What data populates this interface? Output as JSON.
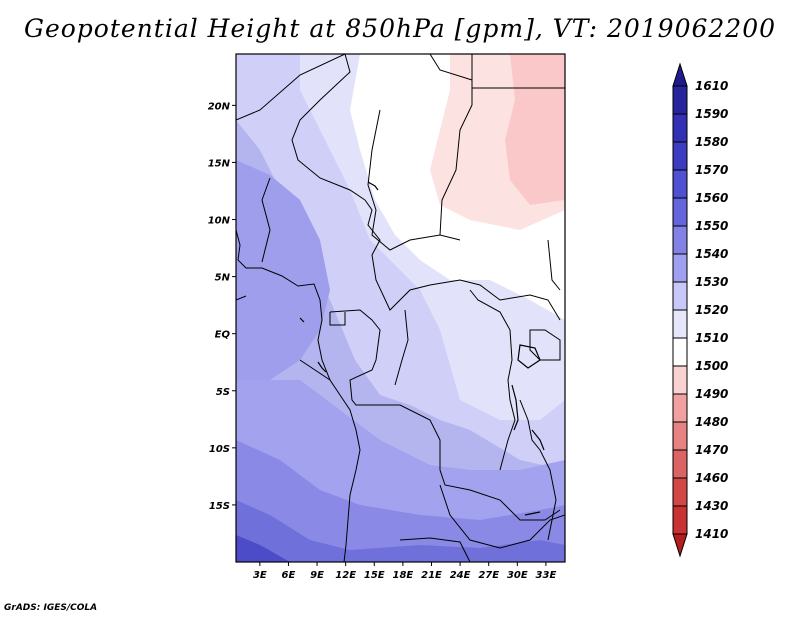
{
  "title": "Geopotential Height at 850hPa [gpm], VT: 2019062200",
  "credit": "GrADS: IGES/COLA",
  "map": {
    "lat_labels": [
      {
        "label": "20N",
        "lat": 20
      },
      {
        "label": "15N",
        "lat": 15
      },
      {
        "label": "10N",
        "lat": 10
      },
      {
        "label": "5N",
        "lat": 5
      },
      {
        "label": "EQ",
        "lat": 0
      },
      {
        "label": "5S",
        "lat": -5
      },
      {
        "label": "10S",
        "lat": -10
      },
      {
        "label": "15S",
        "lat": -15
      }
    ],
    "lon_labels": [
      {
        "label": "3E",
        "lon": 3
      },
      {
        "label": "6E",
        "lon": 6
      },
      {
        "label": "9E",
        "lon": 9
      },
      {
        "label": "12E",
        "lon": 12
      },
      {
        "label": "15E",
        "lon": 15
      },
      {
        "label": "18E",
        "lon": 18
      },
      {
        "label": "21E",
        "lon": 21
      },
      {
        "label": "24E",
        "lon": 24
      },
      {
        "label": "27E",
        "lon": 27
      },
      {
        "label": "30E",
        "lon": 30
      },
      {
        "label": "33E",
        "lon": 33
      }
    ],
    "lon_range": [
      0.5,
      35
    ],
    "lat_range": [
      -20,
      24.5
    ]
  },
  "colorbar": {
    "levels": [
      {
        "label": "1610",
        "color": "#1e1c8c"
      },
      {
        "label": "1590",
        "color": "#28249e"
      },
      {
        "label": "1580",
        "color": "#3230b4"
      },
      {
        "label": "1570",
        "color": "#3c3cc0"
      },
      {
        "label": "1560",
        "color": "#5050d2"
      },
      {
        "label": "1550",
        "color": "#6464dc"
      },
      {
        "label": "1540",
        "color": "#8282e6"
      },
      {
        "label": "1530",
        "color": "#a0a0f0"
      },
      {
        "label": "1520",
        "color": "#c8c8f8"
      },
      {
        "label": "1510",
        "color": "#e6e6fa"
      },
      {
        "label": "1500",
        "color": "#ffffff"
      },
      {
        "label": "1490",
        "color": "#fad2d2"
      },
      {
        "label": "1480",
        "color": "#f0a0a0"
      },
      {
        "label": "1470",
        "color": "#e68282"
      },
      {
        "label": "1460",
        "color": "#dc6464"
      },
      {
        "label": "1430",
        "color": "#d24646"
      },
      {
        "label": "1410",
        "color": "#c83232"
      },
      {
        "label": "",
        "color": "#b41e1e"
      }
    ]
  }
}
